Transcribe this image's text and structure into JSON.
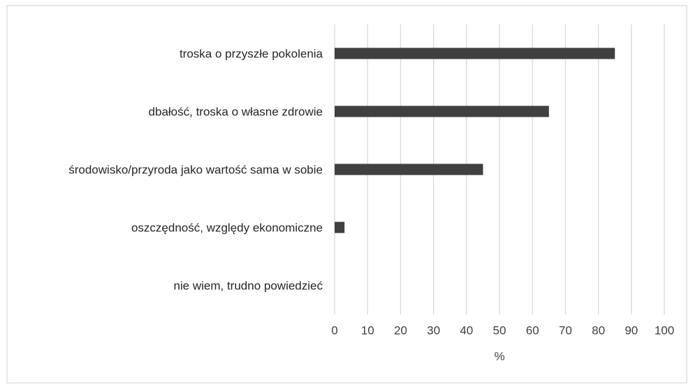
{
  "chart_data": {
    "type": "barh",
    "categories": [
      "troska o przyszłe pokolenia",
      "dbałość, troska o własne zdrowie",
      "środowisko/przyroda  jako wartość sama w  sobie",
      "oszczędność, względy ekonomiczne",
      "nie wiem, trudno powiedzieć"
    ],
    "values": [
      85,
      65,
      45,
      3,
      0
    ],
    "color": "#404040",
    "xlabel": "%",
    "xlim": [
      0,
      100
    ],
    "xticks": [
      0,
      10,
      20,
      30,
      40,
      50,
      60,
      70,
      80,
      90,
      100
    ],
    "grid": true
  }
}
